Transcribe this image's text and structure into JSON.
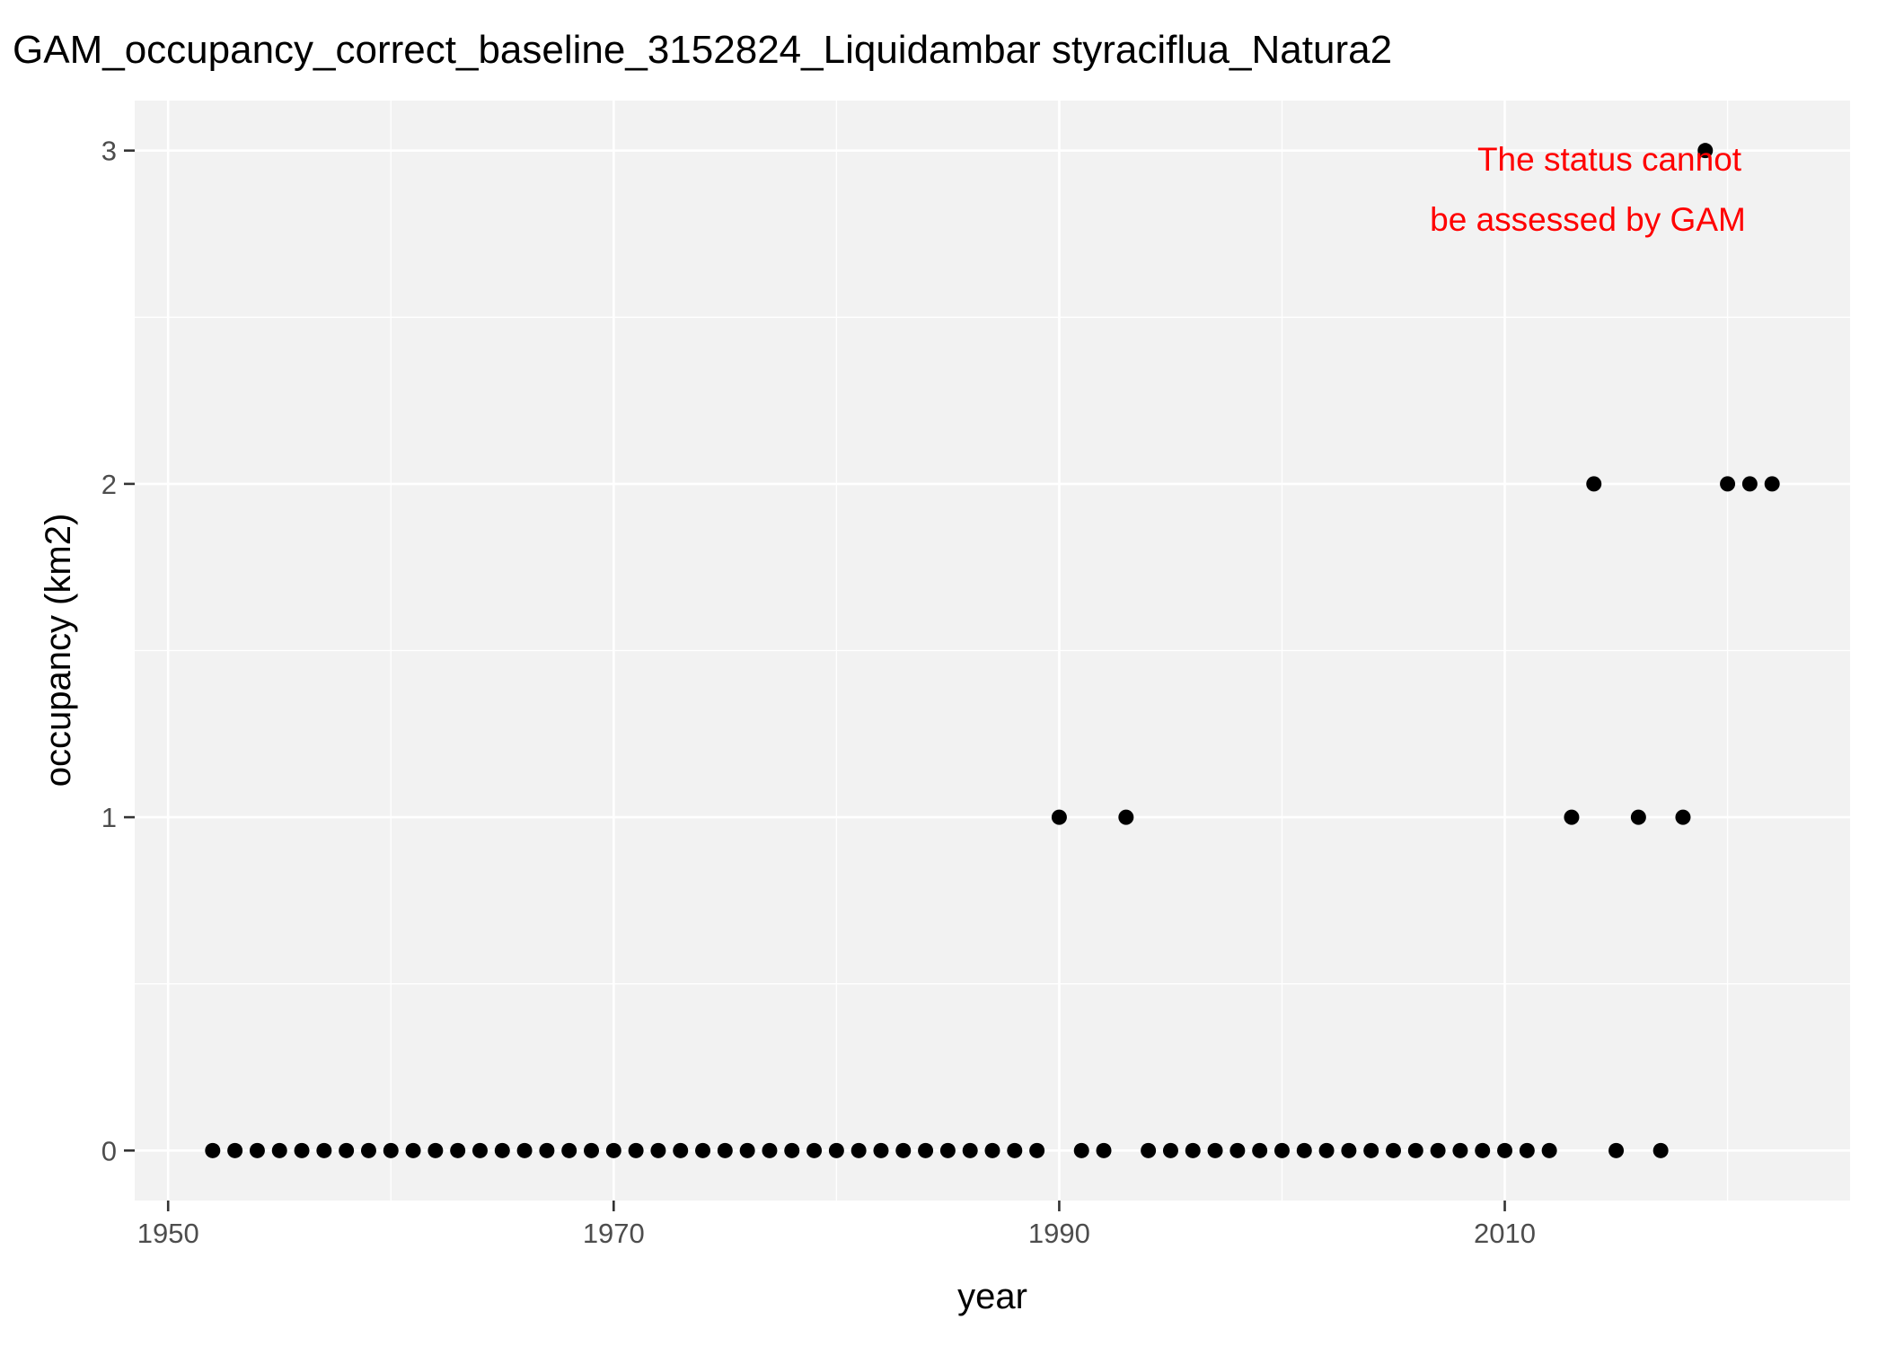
{
  "chart_data": {
    "type": "scatter",
    "title": "GAM_occupancy_correct_baseline_3152824_Liquidambar styraciflua_Natura2",
    "xlabel": "year",
    "ylabel": "occupancy (km2)",
    "xlim": [
      1948.5,
      2025.5
    ],
    "ylim": [
      -0.15,
      3.15
    ],
    "x_ticks": [
      1950,
      1970,
      1990,
      2010
    ],
    "y_ticks": [
      0,
      1,
      2,
      3
    ],
    "x_tick_labels": [
      "1950",
      "1970",
      "1990",
      "2010"
    ],
    "y_tick_labels": [
      "0",
      "1",
      "2",
      "3"
    ],
    "grid": true,
    "legend": "none",
    "point_color": "#000000",
    "panel_background": "#f2f2f2",
    "annotation": {
      "lines": [
        "The status cannot",
        "be assessed by GAM"
      ],
      "color": "#ff0000",
      "placement": "top-right"
    },
    "series": [
      {
        "x": [
          1952,
          1953,
          1954,
          1955,
          1956,
          1957,
          1958,
          1959,
          1960,
          1961,
          1962,
          1963,
          1964,
          1965,
          1966,
          1967,
          1968,
          1969,
          1970,
          1971,
          1972,
          1973,
          1974,
          1975,
          1976,
          1977,
          1978,
          1979,
          1980,
          1981,
          1982,
          1983,
          1984,
          1985,
          1986,
          1987,
          1988,
          1989,
          1990,
          1991,
          1992,
          1993,
          1994,
          1995,
          1996,
          1997,
          1998,
          1999,
          2000,
          2001,
          2002,
          2003,
          2004,
          2005,
          2006,
          2007,
          2008,
          2009,
          2010,
          2011,
          2012,
          2013,
          2014,
          2015,
          2016,
          2017,
          2018,
          2019,
          2020,
          2021,
          2022
        ],
        "y": [
          0,
          0,
          0,
          0,
          0,
          0,
          0,
          0,
          0,
          0,
          0,
          0,
          0,
          0,
          0,
          0,
          0,
          0,
          0,
          0,
          0,
          0,
          0,
          0,
          0,
          0,
          0,
          0,
          0,
          0,
          0,
          0,
          0,
          0,
          0,
          0,
          0,
          0,
          1,
          0,
          0,
          1,
          0,
          0,
          0,
          0,
          0,
          0,
          0,
          0,
          0,
          0,
          0,
          0,
          0,
          0,
          0,
          0,
          0,
          0,
          0,
          1,
          2,
          0,
          1,
          0,
          1,
          3,
          2,
          2,
          2
        ]
      }
    ]
  }
}
